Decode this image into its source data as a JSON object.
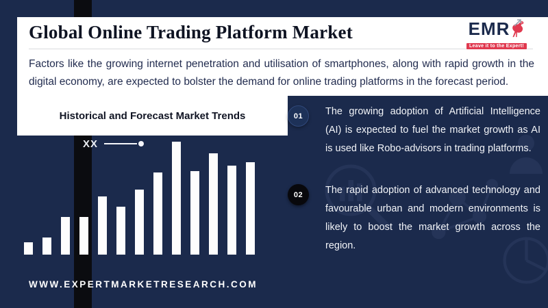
{
  "page": {
    "title": "Global Online Trading Platform Market",
    "intro": "Factors like the growing internet penetration and utilisation of smartphones, along with rapid growth in the digital economy, are expected to bolster the demand for online trading platforms in the forecast period.",
    "website": "WWW.EXPERTMARKETRESEARCH.COM"
  },
  "logo": {
    "name": "EMR",
    "tagline": "Leave it to the Expert!"
  },
  "chart": {
    "title": "Historical and Forecast Market Trends",
    "legend_label": "XX"
  },
  "chart_data": {
    "type": "bar",
    "title": "Historical and Forecast Market Trends",
    "legend_label": "XX",
    "values_relative": [
      18,
      25,
      55,
      55,
      85,
      70,
      95,
      120,
      165,
      122,
      148,
      130,
      135
    ],
    "bar_color": "#ffffff",
    "axes_visible": false,
    "note": "Illustrative unlabeled trend bars; heights are relative pixel values read from the image"
  },
  "points": [
    {
      "number": "01",
      "text": "The growing adoption of Artificial Intelligence (AI) is expected to fuel the market growth as AI is used like Robo-advisors in trading platforms."
    },
    {
      "number": "02",
      "text": "The rapid adoption of advanced technology and favourable urban and modern environments is likely to boost the market growth across the region."
    }
  ],
  "colors": {
    "background_navy": "#1b2a4c",
    "accent_black": "#0b0c10",
    "card_white": "#ffffff",
    "brand_red": "#e0394f",
    "text_dark": "#101423",
    "text_light": "#f2f4f8"
  }
}
